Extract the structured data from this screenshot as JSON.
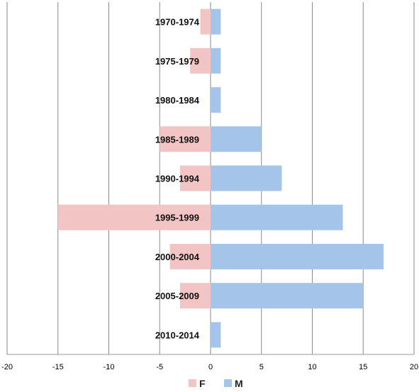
{
  "chart_data": {
    "type": "bar",
    "orientation": "horizontal",
    "title": "",
    "xlabel": "",
    "ylabel": "",
    "categories": [
      "1970-1974",
      "1975-1979",
      "1980-1984",
      "1985-1989",
      "1990-1994",
      "1995-1999",
      "2000-2004",
      "2005-2009",
      "2010-2014"
    ],
    "series": [
      {
        "name": "F",
        "color": "#f2c4c4",
        "values": [
          -1,
          -2,
          0,
          -5,
          -3,
          -15,
          -4,
          -3,
          0
        ]
      },
      {
        "name": "M",
        "color": "#a4c4ea",
        "values": [
          1,
          1,
          1,
          5,
          7,
          13,
          17,
          15,
          1
        ]
      }
    ],
    "xlim": [
      -20,
      20
    ],
    "xticks": [
      -20,
      -15,
      -10,
      -5,
      0,
      5,
      10,
      15,
      20
    ],
    "xtick_labels": [
      "-20",
      "-15",
      "-10",
      "-5",
      "0",
      "5",
      "10",
      "15",
      "20"
    ],
    "grid": "vertical",
    "legend": "bottom"
  }
}
